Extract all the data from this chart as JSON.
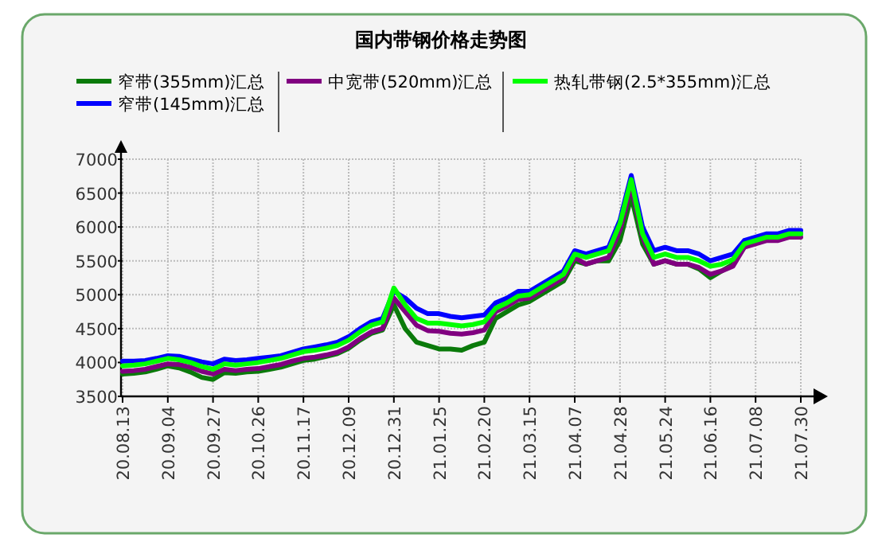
{
  "chart_data": {
    "type": "line",
    "title": "国内带钢价格走势图",
    "categories": [
      "20.08.13",
      null,
      null,
      null,
      "20.09.04",
      null,
      null,
      null,
      "20.09.27",
      null,
      null,
      null,
      "20.10.26",
      null,
      null,
      null,
      "20.11.17",
      null,
      null,
      null,
      "20.12.09",
      null,
      null,
      null,
      "20.12.31",
      null,
      null,
      null,
      "21.01.25",
      null,
      null,
      null,
      "21.02.20",
      null,
      null,
      null,
      "21.03.15",
      null,
      null,
      null,
      "21.04.07",
      null,
      null,
      null,
      "21.04.28",
      null,
      null,
      null,
      "21.05.24",
      null,
      null,
      null,
      "21.06.16",
      null,
      null,
      null,
      "21.07.08",
      null,
      null,
      null,
      "21.07.30"
    ],
    "series": [
      {
        "name": "窄带(355mm)汇总",
        "color": "#0a7a0a",
        "values": [
          3830,
          3840,
          3860,
          3900,
          3950,
          3920,
          3860,
          3780,
          3750,
          3850,
          3840,
          3860,
          3870,
          3900,
          3930,
          3980,
          4030,
          4050,
          4090,
          4130,
          4210,
          4330,
          4430,
          4480,
          4850,
          4500,
          4300,
          4250,
          4200,
          4200,
          4180,
          4250,
          4300,
          4650,
          4750,
          4850,
          4900,
          5000,
          5100,
          5200,
          5500,
          5450,
          5500,
          5500,
          5800,
          6450,
          5750,
          5450,
          5500,
          5450,
          5450,
          5380,
          5250,
          5350,
          5450,
          5700,
          5800,
          5850,
          5850,
          5900,
          5900
        ]
      },
      {
        "name": "窄带(145mm)汇总",
        "color": "#0000ff",
        "values": [
          4020,
          4020,
          4030,
          4060,
          4100,
          4090,
          4050,
          4010,
          3980,
          4050,
          4030,
          4040,
          4060,
          4080,
          4100,
          4150,
          4200,
          4230,
          4260,
          4300,
          4380,
          4500,
          4600,
          4650,
          5050,
          4950,
          4800,
          4720,
          4720,
          4680,
          4660,
          4680,
          4700,
          4880,
          4950,
          5050,
          5050,
          5150,
          5250,
          5350,
          5650,
          5600,
          5650,
          5700,
          6100,
          6760,
          6000,
          5650,
          5700,
          5650,
          5650,
          5600,
          5500,
          5550,
          5600,
          5800,
          5850,
          5900,
          5900,
          5950,
          5950
        ]
      },
      {
        "name": "中宽带(520mm)汇总",
        "color": "#800080",
        "values": [
          3870,
          3880,
          3900,
          3940,
          3980,
          3970,
          3930,
          3870,
          3830,
          3900,
          3880,
          3900,
          3910,
          3940,
          3970,
          4020,
          4060,
          4080,
          4110,
          4150,
          4230,
          4350,
          4450,
          4500,
          4950,
          4750,
          4550,
          4470,
          4460,
          4430,
          4420,
          4440,
          4480,
          4750,
          4830,
          4930,
          4950,
          5050,
          5150,
          5250,
          5550,
          5450,
          5500,
          5550,
          5950,
          6600,
          5850,
          5450,
          5500,
          5450,
          5450,
          5400,
          5300,
          5350,
          5420,
          5700,
          5750,
          5800,
          5800,
          5850,
          5850
        ]
      },
      {
        "name": "热轧带钢(2.5*355mm)汇总",
        "color": "#00ff00",
        "values": [
          3950,
          3960,
          3980,
          4020,
          4060,
          4040,
          4000,
          3940,
          3900,
          3980,
          3960,
          3980,
          4000,
          4030,
          4060,
          4110,
          4160,
          4180,
          4210,
          4250,
          4330,
          4450,
          4550,
          4600,
          5100,
          4850,
          4650,
          4580,
          4580,
          4560,
          4540,
          4560,
          4600,
          4800,
          4880,
          4980,
          5000,
          5100,
          5200,
          5300,
          5600,
          5550,
          5600,
          5650,
          6050,
          6700,
          5900,
          5550,
          5600,
          5550,
          5550,
          5500,
          5420,
          5450,
          5520,
          5750,
          5800,
          5850,
          5850,
          5900,
          5900
        ]
      }
    ],
    "ylim": [
      3500,
      7000
    ],
    "yticks": [
      3500,
      4000,
      4500,
      5000,
      5500,
      6000,
      6500,
      7000
    ],
    "grid": true,
    "legend": "top"
  }
}
